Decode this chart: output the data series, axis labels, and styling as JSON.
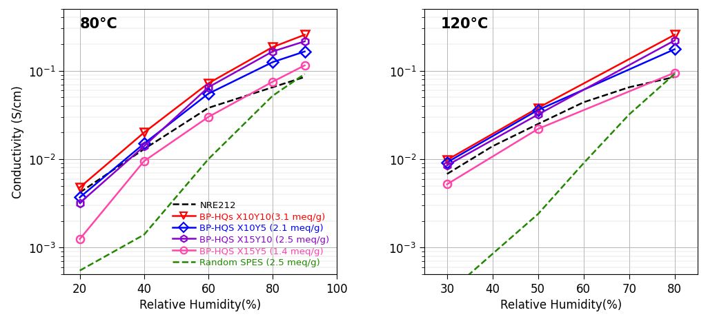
{
  "panel1": {
    "title": "80°C",
    "xlim": [
      15,
      100
    ],
    "xticks": [
      20,
      40,
      60,
      80,
      100
    ],
    "series": {
      "NRE212": {
        "x": [
          20,
          40,
          60,
          80,
          90
        ],
        "y": [
          0.0042,
          0.013,
          0.038,
          0.065,
          0.085
        ],
        "color": "#000000",
        "linestyle": "--",
        "marker": null,
        "linewidth": 1.8
      },
      "X10Y10": {
        "x": [
          20,
          40,
          60,
          80,
          90
        ],
        "y": [
          0.0048,
          0.02,
          0.072,
          0.185,
          0.255
        ],
        "color": "#ff0000",
        "linestyle": "-",
        "marker": "v",
        "linewidth": 1.8
      },
      "X10Y5": {
        "x": [
          20,
          40,
          60,
          80,
          90
        ],
        "y": [
          0.0037,
          0.015,
          0.055,
          0.125,
          0.165
        ],
        "color": "#0000ff",
        "linestyle": "-",
        "marker": "D",
        "linewidth": 1.8
      },
      "X15Y10": {
        "x": [
          20,
          40,
          60,
          80,
          90
        ],
        "y": [
          0.0032,
          0.014,
          0.065,
          0.165,
          0.215
        ],
        "color": "#8800cc",
        "linestyle": "-",
        "marker": "h",
        "linewidth": 1.8
      },
      "X15Y5": {
        "x": [
          20,
          40,
          60,
          80,
          90
        ],
        "y": [
          0.00125,
          0.0095,
          0.03,
          0.075,
          0.115
        ],
        "color": "#ff44aa",
        "linestyle": "-",
        "marker": "o",
        "linewidth": 1.8
      },
      "RandomSPES": {
        "x": [
          20,
          40,
          60,
          80,
          90
        ],
        "y": [
          0.00055,
          0.0014,
          0.01,
          0.052,
          0.092
        ],
        "color": "#228800",
        "linestyle": "--",
        "marker": null,
        "linewidth": 1.8
      }
    }
  },
  "panel2": {
    "title": "120°C",
    "xlim": [
      25,
      85
    ],
    "xticks": [
      30,
      40,
      50,
      60,
      70,
      80
    ],
    "series": {
      "NRE212": {
        "x": [
          30,
          40,
          50,
          60,
          70,
          80
        ],
        "y": [
          0.0068,
          0.014,
          0.025,
          0.044,
          0.065,
          0.085
        ],
        "color": "#000000",
        "linestyle": "--",
        "marker": null,
        "linewidth": 1.8
      },
      "X10Y10": {
        "x": [
          30,
          50,
          80
        ],
        "y": [
          0.0098,
          0.038,
          0.255
        ],
        "color": "#ff0000",
        "linestyle": "-",
        "marker": "v",
        "linewidth": 1.8
      },
      "X10Y5": {
        "x": [
          30,
          50,
          80
        ],
        "y": [
          0.0092,
          0.036,
          0.175
        ],
        "color": "#0000ff",
        "linestyle": "-",
        "marker": "D",
        "linewidth": 1.8
      },
      "X15Y10": {
        "x": [
          30,
          50,
          80
        ],
        "y": [
          0.0085,
          0.032,
          0.22
        ],
        "color": "#8800cc",
        "linestyle": "-",
        "marker": "h",
        "linewidth": 1.8
      },
      "X15Y5": {
        "x": [
          30,
          50,
          80
        ],
        "y": [
          0.0052,
          0.022,
          0.095
        ],
        "color": "#ff44aa",
        "linestyle": "-",
        "marker": "o",
        "linewidth": 1.8
      },
      "RandomSPES": {
        "x": [
          30,
          40,
          50,
          60,
          70,
          80
        ],
        "y": [
          0.0003,
          0.00085,
          0.0024,
          0.009,
          0.032,
          0.092
        ],
        "color": "#228800",
        "linestyle": "--",
        "marker": null,
        "linewidth": 1.8
      }
    }
  },
  "legend": {
    "NRE212": {
      "label": "NRE212",
      "color": "#000000",
      "linestyle": "--",
      "marker": null
    },
    "X10Y10": {
      "label": "BP-HQs X10Y10(3.1 meq/g)",
      "color": "#ff0000",
      "linestyle": "-",
      "marker": "v"
    },
    "X10Y5": {
      "label": "BP-HQS X10Y5 (2.1 meq/g)",
      "color": "#0000ff",
      "linestyle": "-",
      "marker": "D"
    },
    "X15Y10": {
      "label": "BP-HQS X15Y10 (2.5 meq/g)",
      "color": "#8800cc",
      "linestyle": "-",
      "marker": "h"
    },
    "X15Y5": {
      "label": "BP-HQS X15Y5 (1.4 meq/g)",
      "color": "#ff44aa",
      "linestyle": "-",
      "marker": "o"
    },
    "RandomSPES": {
      "label": "Random SPES (2.5 meq/g)",
      "color": "#228800",
      "linestyle": "--",
      "marker": null
    }
  },
  "ylabel": "Conductivity (S/cm)",
  "xlabel": "Relative Humidity(%)",
  "ylim": [
    0.0005,
    0.5
  ],
  "marker_size": 8,
  "font_size": 12,
  "title_fontsize": 15
}
